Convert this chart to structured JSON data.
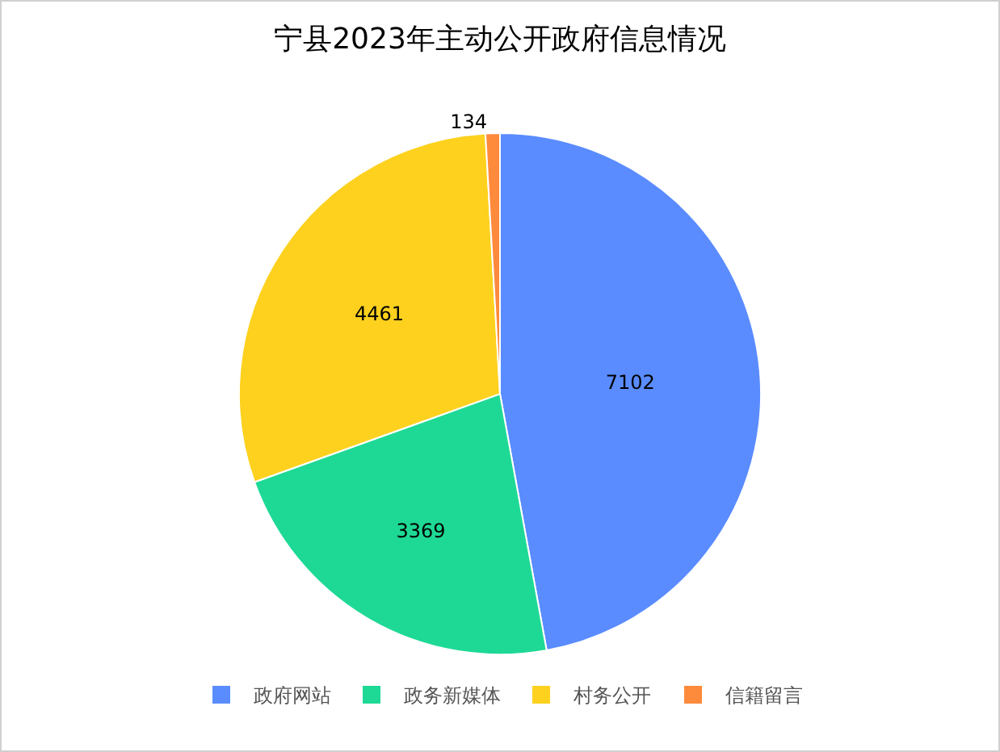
{
  "chart_data": {
    "type": "pie",
    "title": "宁县2023年主动公开政府信息情况",
    "categories": [
      "政府网站",
      "政务新媒体",
      "村务公开",
      "信籍留言"
    ],
    "values": [
      7102,
      3369,
      4461,
      134
    ],
    "colors": [
      "#5a8cff",
      "#1ed995",
      "#fdd11e",
      "#fe8a3c"
    ],
    "data_labels": true,
    "legend": "bottom"
  }
}
